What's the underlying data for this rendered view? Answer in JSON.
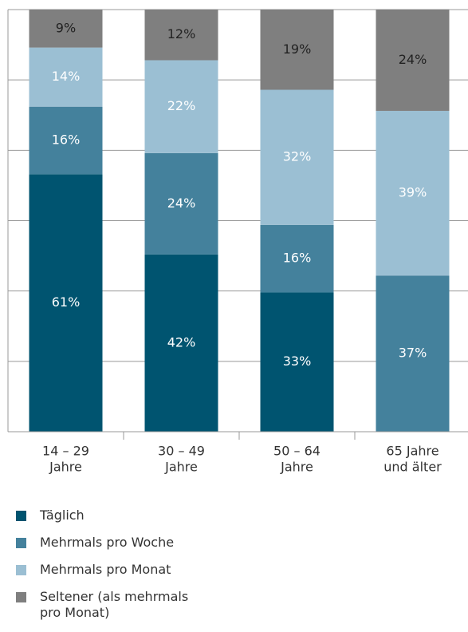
{
  "chart_data": {
    "type": "stacked-bar",
    "categories": [
      [
        "14 – 29",
        "Jahre"
      ],
      [
        "30 – 49",
        "Jahre"
      ],
      [
        "50 – 64",
        "Jahre"
      ],
      [
        "65 Jahre",
        "und älter"
      ]
    ],
    "series": [
      {
        "name": "Täglich",
        "color": "#005470",
        "values": [
          61,
          42,
          33,
          null
        ],
        "value_labels": [
          "61%",
          "42%",
          "33%",
          null
        ]
      },
      {
        "name": "Mehrmals pro Woche",
        "color": "#44819c",
        "values": [
          16,
          24,
          16,
          37
        ],
        "value_labels": [
          "16%",
          "24%",
          "16%",
          "37%"
        ]
      },
      {
        "name": "Mehrmals pro Monat",
        "color": "#9bbfd3",
        "values": [
          14,
          22,
          32,
          39
        ],
        "value_labels": [
          "14%",
          "22%",
          "32%",
          "39%"
        ]
      },
      {
        "name": "Seltener (als mehrmals pro Monat)",
        "color": "#7f7f7f",
        "values": [
          9,
          12,
          19,
          24
        ],
        "value_labels": [
          "9%",
          "12%",
          "19%",
          "24%"
        ]
      }
    ],
    "ylim": [
      0,
      100
    ],
    "grid": true,
    "grid_lines": 6
  }
}
